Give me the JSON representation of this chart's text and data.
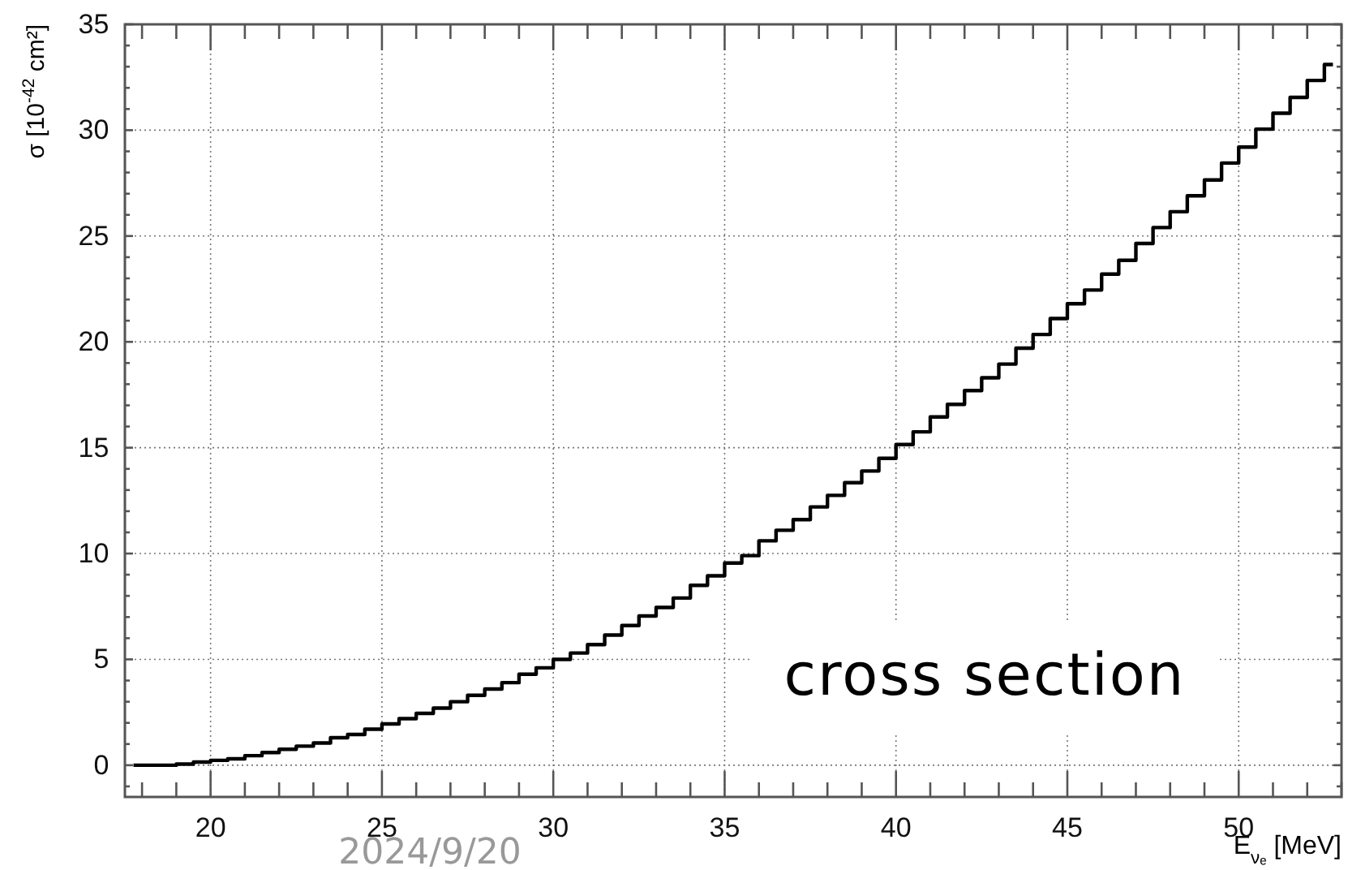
{
  "chart_data": {
    "type": "step",
    "xlabel": "E$_{νₑ}$ [MeV]",
    "ylabel": "σ [10$^{-42}$ cm²]",
    "x": [
      17.75,
      18.25,
      18.75,
      19.25,
      19.75,
      20.25,
      20.75,
      21.25,
      21.75,
      22.25,
      22.75,
      23.25,
      23.75,
      24.25,
      24.75,
      25.25,
      25.75,
      26.25,
      26.75,
      27.25,
      27.75,
      28.25,
      28.75,
      29.25,
      29.75,
      30.25,
      30.75,
      31.25,
      31.75,
      32.25,
      32.75,
      33.25,
      33.75,
      34.25,
      34.75,
      35.25,
      35.75,
      36.25,
      36.75,
      37.25,
      37.75,
      38.25,
      38.75,
      39.25,
      39.75,
      40.25,
      40.75,
      41.25,
      41.75,
      42.25,
      42.75,
      43.25,
      43.75,
      44.25,
      44.75,
      45.25,
      45.75,
      46.25,
      46.75,
      47.25,
      47.75,
      48.25,
      48.75,
      49.25,
      49.75,
      50.25,
      50.75,
      51.25,
      51.75,
      52.25,
      52.75
    ],
    "values": [
      0,
      0,
      0,
      0.05,
      0.15,
      0.23,
      0.3,
      0.45,
      0.6,
      0.75,
      0.9,
      1.05,
      1.3,
      1.45,
      1.7,
      1.95,
      2.2,
      2.45,
      2.7,
      3.0,
      3.3,
      3.6,
      3.9,
      4.3,
      4.6,
      5.0,
      5.3,
      5.7,
      6.15,
      6.6,
      7.05,
      7.45,
      7.9,
      8.5,
      8.95,
      9.55,
      9.9,
      10.6,
      11.1,
      11.6,
      12.2,
      12.75,
      13.35,
      13.9,
      14.5,
      15.15,
      15.75,
      16.45,
      17.05,
      17.7,
      18.3,
      18.95,
      19.7,
      20.35,
      21.1,
      21.8,
      22.45,
      23.2,
      23.85,
      24.65,
      25.4,
      26.15,
      26.9,
      27.65,
      28.45,
      29.2,
      30.05,
      30.8,
      31.55,
      32.35,
      33.1
    ],
    "color": "#000000",
    "xlim": [
      17.5,
      53
    ],
    "xticks": [
      {
        "value": 18,
        "label": null
      },
      {
        "value": 19,
        "label": null
      },
      20,
      {
        "value": 21,
        "label": null
      },
      {
        "value": 22,
        "label": null
      },
      {
        "value": 23,
        "label": null
      },
      {
        "value": 24,
        "label": null
      },
      25,
      {
        "value": 26,
        "label": null
      },
      {
        "value": 27,
        "label": null
      },
      {
        "value": 28,
        "label": null
      },
      {
        "value": 29,
        "label": null
      },
      30,
      {
        "value": 31,
        "label": null
      },
      {
        "value": 32,
        "label": null
      },
      {
        "value": 33,
        "label": null
      },
      {
        "value": 34,
        "label": null
      },
      35,
      {
        "value": 36,
        "label": null
      },
      {
        "value": 37,
        "label": null
      },
      {
        "value": 38,
        "label": null
      },
      {
        "value": 39,
        "label": null
      },
      40,
      {
        "value": 41,
        "label": null
      },
      {
        "value": 42,
        "label": null
      },
      {
        "value": 43,
        "label": null
      },
      {
        "value": 44,
        "label": null
      },
      45,
      {
        "value": 46,
        "label": null
      },
      {
        "value": 47,
        "label": null
      },
      {
        "value": 48,
        "label": null
      },
      {
        "value": 49,
        "label": null
      },
      50,
      {
        "value": 51,
        "label": null
      },
      {
        "value": 52,
        "label": null
      },
      {
        "value": 53,
        "label": null
      }
    ],
    "ylim": [
      -1.5,
      35
    ],
    "yticks": [
      {
        "value": -1,
        "label": null
      },
      0,
      {
        "value": 1,
        "label": null
      },
      {
        "value": 2,
        "label": null
      },
      {
        "value": 3,
        "label": null
      },
      {
        "value": 4,
        "label": null
      },
      5,
      {
        "value": 6,
        "label": null
      },
      {
        "value": 7,
        "label": null
      },
      {
        "value": 8,
        "label": null
      },
      {
        "value": 9,
        "label": null
      },
      10,
      {
        "value": 11,
        "label": null
      },
      {
        "value": 12,
        "label": null
      },
      {
        "value": 13,
        "label": null
      },
      {
        "value": 14,
        "label": null
      },
      15,
      {
        "value": 16,
        "label": null
      },
      {
        "value": 17,
        "label": null
      },
      {
        "value": 18,
        "label": null
      },
      {
        "value": 19,
        "label": null
      },
      20,
      {
        "value": 21,
        "label": null
      },
      {
        "value": 22,
        "label": null
      },
      {
        "value": 23,
        "label": null
      },
      {
        "value": 24,
        "label": null
      },
      25,
      {
        "value": 26,
        "label": null
      },
      {
        "value": 27,
        "label": null
      },
      {
        "value": 28,
        "label": null
      },
      {
        "value": 29,
        "label": null
      },
      30,
      {
        "value": 31,
        "label": null
      },
      {
        "value": 32,
        "label": null
      },
      {
        "value": 33,
        "label": null
      },
      {
        "value": 34,
        "label": null
      },
      35
    ],
    "grid": true,
    "annotations": [
      "cross section",
      "2024/9/20"
    ]
  }
}
